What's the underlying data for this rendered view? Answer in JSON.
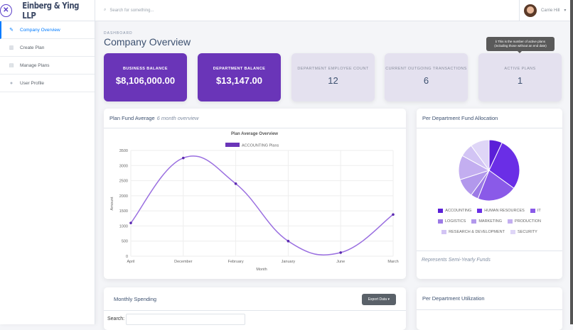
{
  "brand": {
    "name": "Einberg & Ying LLP"
  },
  "sidebar": {
    "items": [
      {
        "label": "Company Overview",
        "icon": "pencil-icon"
      },
      {
        "label": "Create Plan",
        "icon": "columns-icon"
      },
      {
        "label": "Manage Plans",
        "icon": "file-icon"
      },
      {
        "label": "User Profile",
        "icon": "user-icon"
      }
    ]
  },
  "topbar": {
    "search_placeholder": "Search for something...",
    "user_name": "Carrie Hill"
  },
  "header": {
    "subtitle": "DASHBOARD",
    "title": "Company Overview"
  },
  "stats": [
    {
      "label": "BUSINESS BALANCE",
      "value": "$8,106,000.00"
    },
    {
      "label": "DEPARTMENT BALANCE",
      "value": "$13,147.00"
    },
    {
      "label": "DEPARTMENT EMPLOYEE COUNT",
      "value": "12"
    },
    {
      "label": "CURRENT OUTGOING TRANSACTIONS",
      "value": "6"
    },
    {
      "label": "ACTIVE PLANS",
      "value": "1"
    }
  ],
  "tooltip": {
    "line1": "ℹ This is the number of active plans",
    "line2": "(including those without an end date)"
  },
  "plan_card": {
    "title": "Plan Fund Average",
    "subtitle": "6 month overview"
  },
  "pie_card": {
    "title": "Per Department Fund Allocation",
    "footer": "Represents Semi-Yearly Funds"
  },
  "monthly": {
    "title": "Monthly Spending",
    "export": "Export Data ▾",
    "search_label": "Search:"
  },
  "util": {
    "title": "Per Department Utilization"
  },
  "chart_data": [
    {
      "type": "line",
      "title": "Plan Average Overview",
      "xlabel": "Month",
      "ylabel": "Amount",
      "ylim": [
        0,
        3500
      ],
      "yticks": [
        "0",
        "500",
        "1000",
        "1500",
        "2000",
        "2500",
        "3000",
        "3500"
      ],
      "categories": [
        "April",
        "December",
        "February",
        "January",
        "June",
        "March"
      ],
      "series": [
        {
          "name": "ACCOUNTING Plans",
          "values": [
            1100,
            3250,
            2400,
            500,
            120,
            1380
          ],
          "color": "#9a6fe0"
        }
      ]
    },
    {
      "type": "pie",
      "categories": [
        "ACCOUNTING",
        "HUMAN RESOURCES",
        "IT",
        "LOGISTICS",
        "MARKETING",
        "PRODUCTION",
        "RESEARCH & DEVELOPMENT",
        "SECURITY"
      ],
      "values": [
        7,
        28,
        21,
        4,
        10,
        13,
        7,
        10
      ],
      "colors": [
        "#5b1fd8",
        "#6a2ee6",
        "#8a5ae8",
        "#9c7ae6",
        "#b298ec",
        "#c3aef0",
        "#d2c4f4",
        "#dfd6f7"
      ]
    }
  ]
}
